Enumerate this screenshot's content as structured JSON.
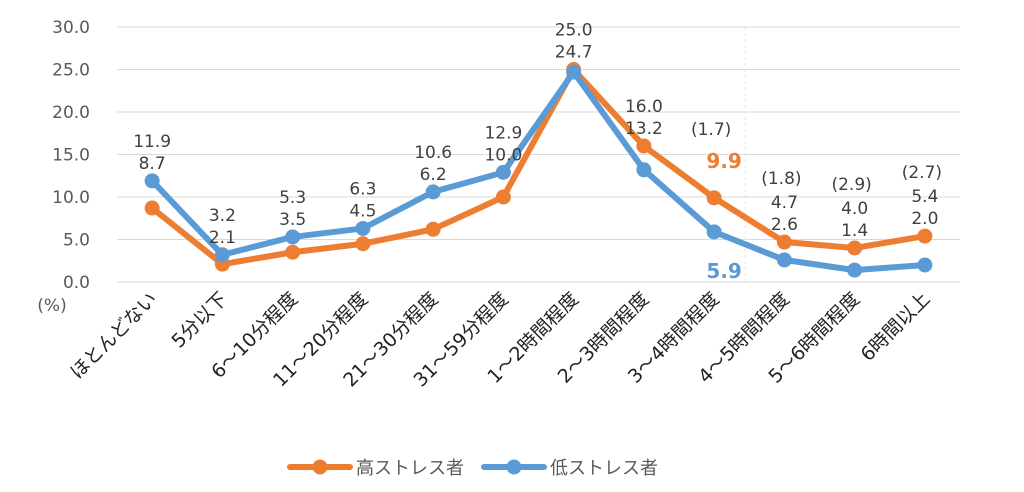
{
  "chart_data": {
    "type": "line",
    "title": "",
    "ylabel_unit": "(%)",
    "ylim": [
      0,
      30
    ],
    "yticks": [
      "0.0",
      "5.0",
      "10.0",
      "15.0",
      "20.0",
      "25.0",
      "30.0"
    ],
    "categories": [
      "ほとんどない",
      "5分以下",
      "6～10分程度",
      "11～20分程度",
      "21～30分程度",
      "31～59分程度",
      "1～2時間程度",
      "2～3時間程度",
      "3～4時間程度",
      "4～5時間程度",
      "5～6時間程度",
      "6時間以上"
    ],
    "series": [
      {
        "name": "高ストレス者",
        "color": "#ED7D31",
        "values": [
          8.7,
          2.1,
          3.5,
          4.5,
          6.2,
          10.0,
          25.0,
          16.0,
          9.9,
          4.7,
          4.0,
          5.4
        ],
        "labels": [
          "8.7",
          "2.1",
          "3.5",
          "4.5",
          "6.2",
          "10.0",
          "25.0",
          "16.0",
          "9.9",
          "4.7",
          "4.0",
          "5.4"
        ]
      },
      {
        "name": "低ストレス者",
        "color": "#5B9BD5",
        "values": [
          11.9,
          3.2,
          5.3,
          6.3,
          10.6,
          12.9,
          24.7,
          13.2,
          5.9,
          2.6,
          1.4,
          2.0
        ],
        "labels": [
          "11.9",
          "3.2",
          "5.3",
          "6.3",
          "10.6",
          "12.9",
          "24.7",
          "13.2",
          "5.9",
          "2.6",
          "1.4",
          "2.0"
        ]
      }
    ],
    "ratios": [
      {
        "category_index": 8,
        "text": "(1.7)"
      },
      {
        "category_index": 9,
        "text": "(1.8)"
      },
      {
        "category_index": 10,
        "text": "(2.9)"
      },
      {
        "category_index": 11,
        "text": "(2.7)"
      }
    ],
    "legend_position": "bottom-center"
  }
}
